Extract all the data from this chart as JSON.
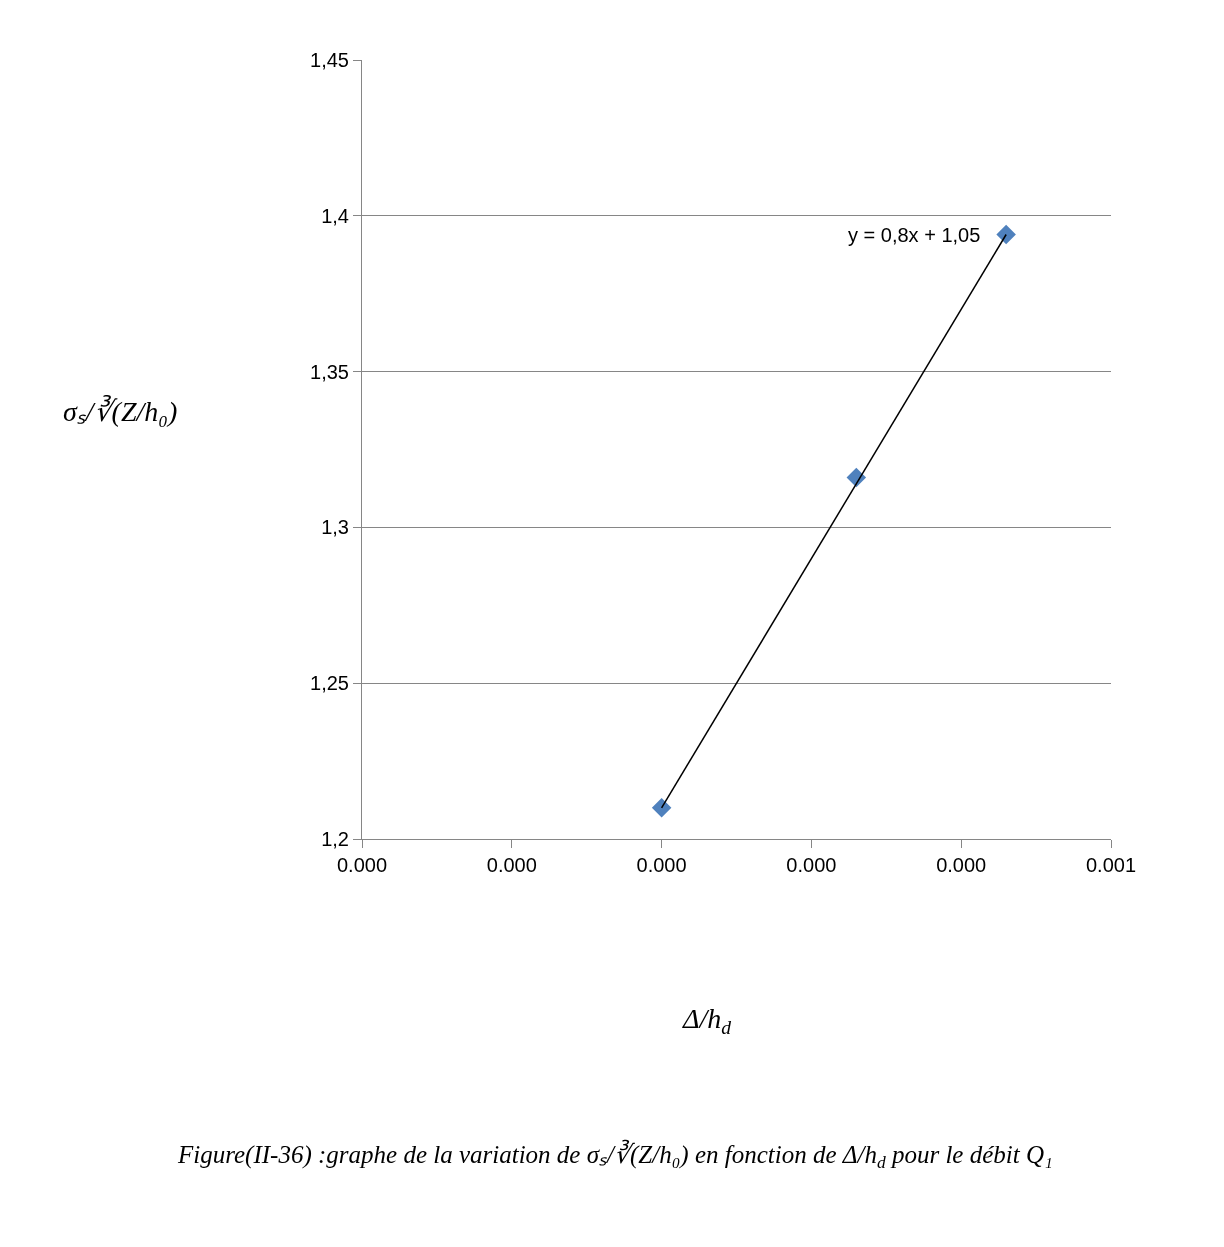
{
  "chart_data": {
    "type": "scatter",
    "xlabel": "Δ/h$_{d}$",
    "ylabel": "σₛ/∛(Z/h₀)",
    "series": [
      {
        "color": "#4f81bd",
        "marker": "diamond",
        "x": [
          0.0002,
          0.00033,
          0.00043
        ],
        "values": [
          1.21,
          1.316,
          1.394
        ]
      },
      {
        "type": "line",
        "color": "#000000",
        "marker": "none",
        "line_style": "solid",
        "x": [
          0.0002,
          0.00043
        ],
        "values": [
          1.21,
          1.394
        ]
      }
    ],
    "xlim": [
      0,
      0.0005
    ],
    "xticks": [
      {
        "value": 0,
        "label": "0.000"
      },
      {
        "value": 0.0001,
        "label": "0.000"
      },
      {
        "value": 0.0002,
        "label": "0.000"
      },
      {
        "value": 0.0003,
        "label": "0.000"
      },
      {
        "value": 0.0004,
        "label": "0.000"
      },
      {
        "value": 0.0005,
        "label": "0.001"
      }
    ],
    "ylim": [
      1.2,
      1.45
    ],
    "yticks": [
      {
        "value": 1.2,
        "label": "1,2"
      },
      {
        "value": 1.25,
        "label": "1,25"
      },
      {
        "value": 1.3,
        "label": "1,3"
      },
      {
        "value": 1.35,
        "label": "1,35"
      },
      {
        "value": 1.4,
        "label": "1,4"
      },
      {
        "value": 1.45,
        "label": "1,45"
      }
    ],
    "grid": "y",
    "annotations": [
      "y = 0,8x + 1,05",
      "Figure(II-36) :graphe de la variation de σₛ/∛(Z/h₀) en fonction de Δ/h$_{d}$ pour le débit Q₁"
    ]
  }
}
